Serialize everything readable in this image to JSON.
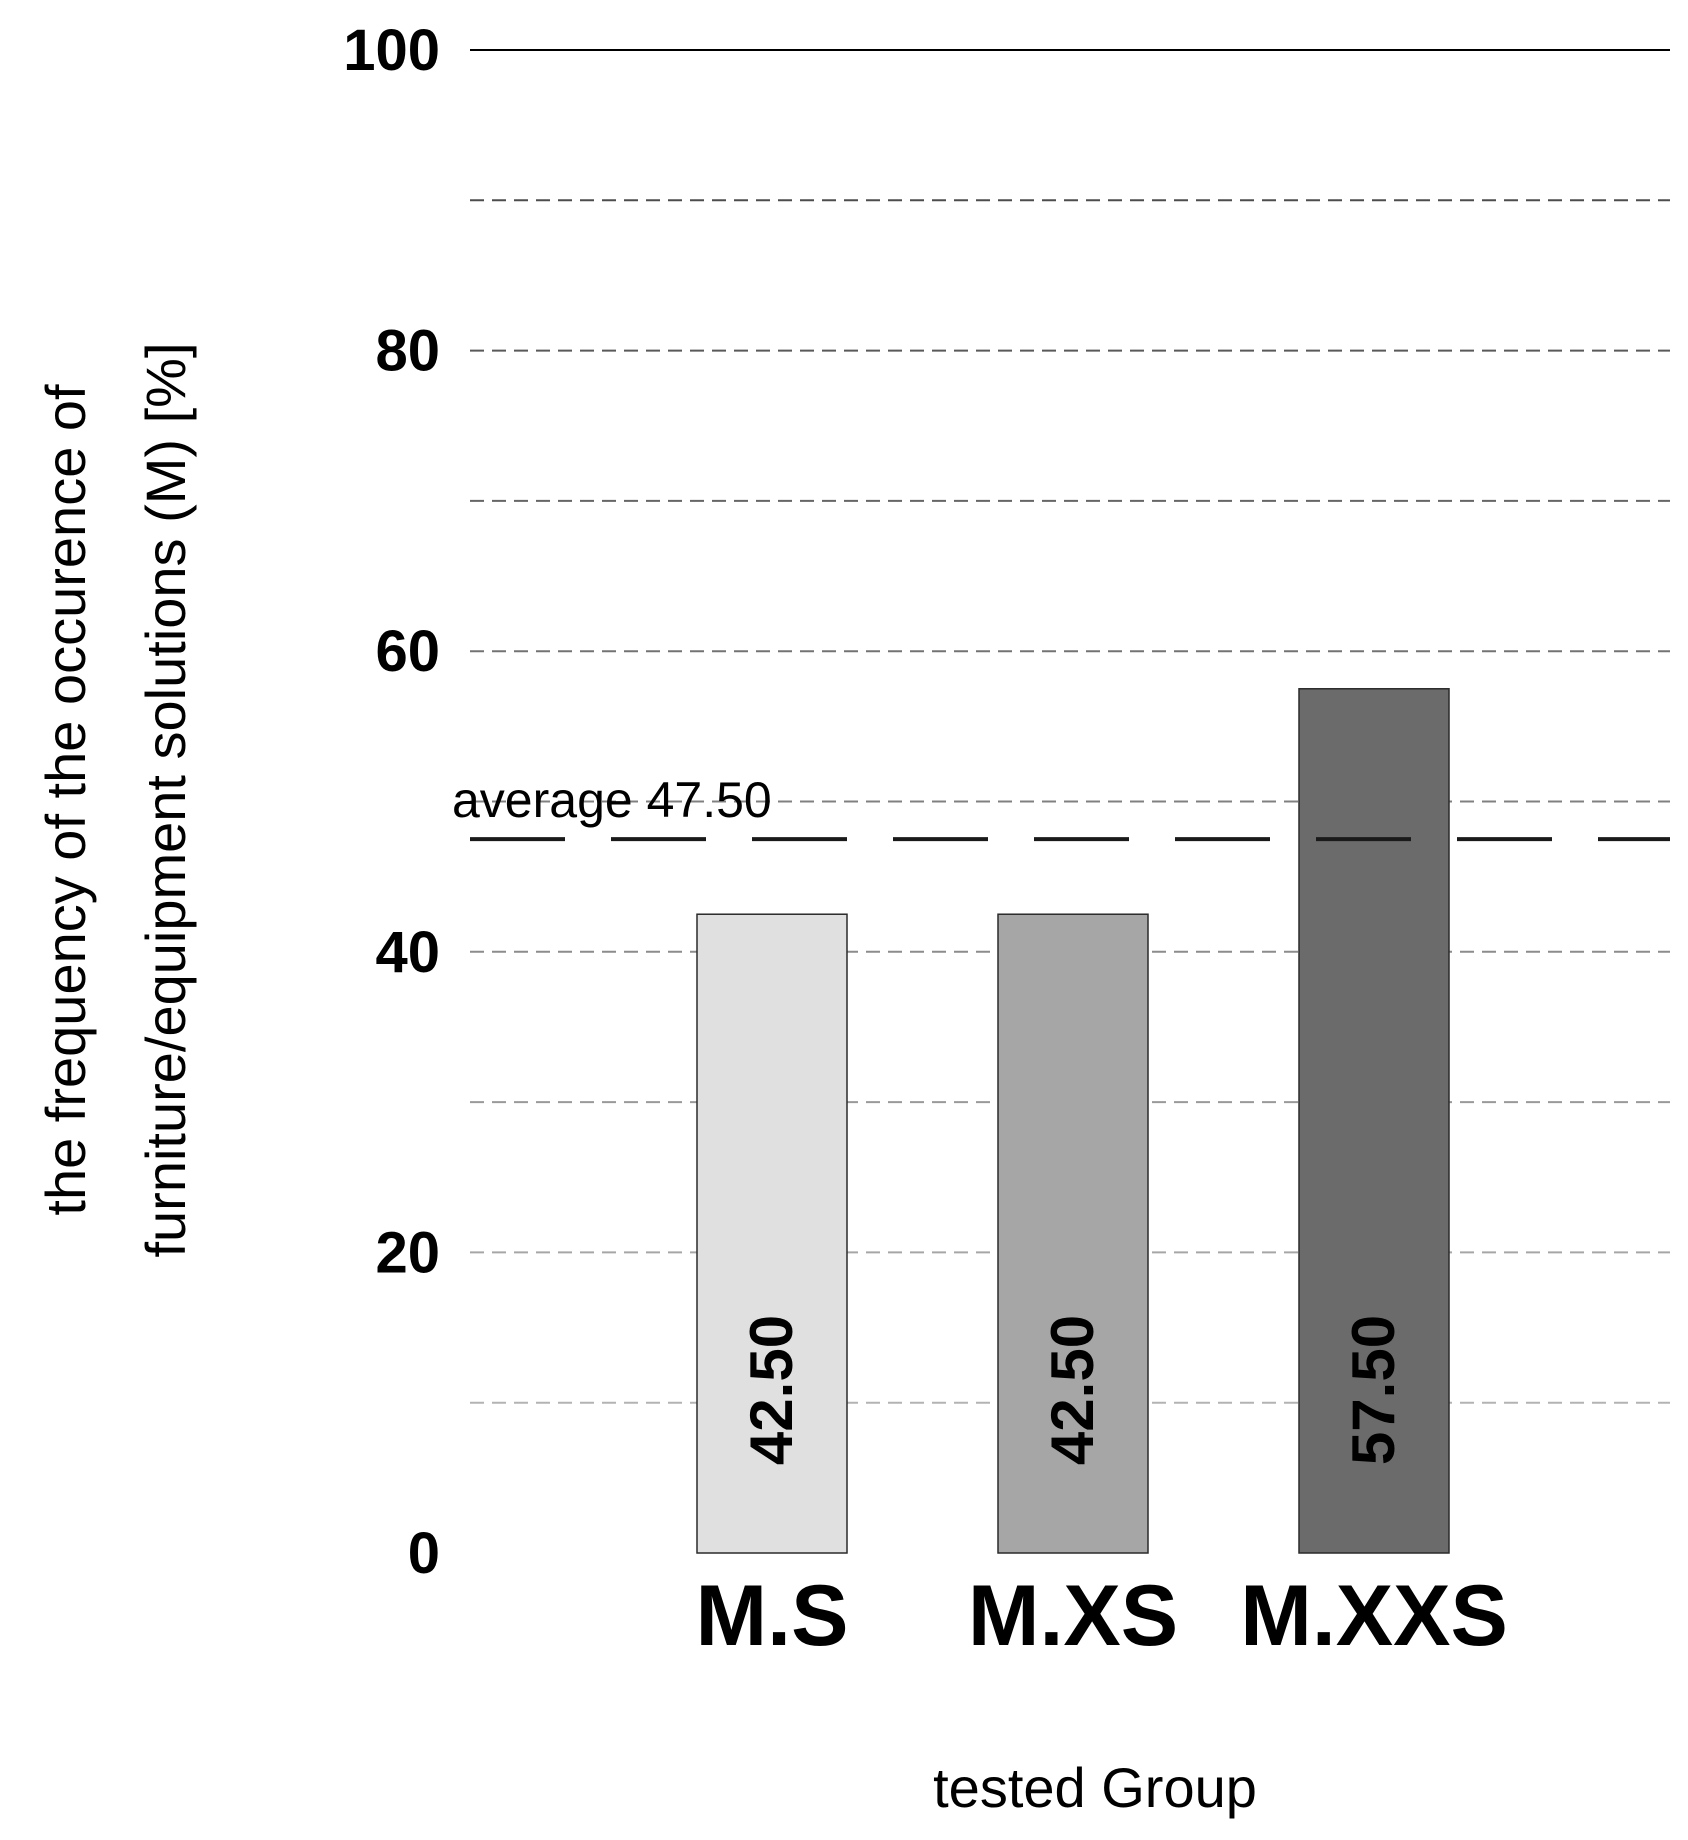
{
  "chart_data": {
    "type": "bar",
    "categories": [
      "M.S",
      "M.XS",
      "M.XXS"
    ],
    "values": [
      42.5,
      42.5,
      57.5
    ],
    "value_labels": [
      "42.50",
      "42.50",
      "57.50"
    ],
    "bar_colors": [
      "#e0e0e0",
      "#a6a6a6",
      "#6b6b6b"
    ],
    "xlabel": "tested Group",
    "ylabel_lines": [
      "the frequency of the occurence of",
      "furniture/equipment solutions (M) [%]"
    ],
    "ylim": [
      0,
      100
    ],
    "yticks": [
      0,
      20,
      40,
      60,
      80,
      100
    ],
    "grid_values": [
      10,
      20,
      30,
      40,
      50,
      60,
      70,
      80,
      90
    ],
    "grid": true,
    "reference_line": {
      "label": "average 47.50",
      "value": 47.5
    }
  }
}
